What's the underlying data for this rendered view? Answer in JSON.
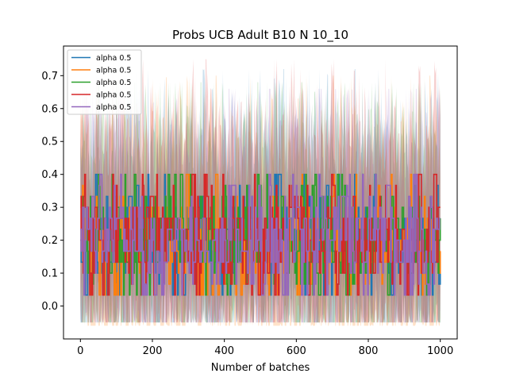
{
  "chart_data": {
    "type": "line",
    "title": "Probs UCB Adult B10 N 10_10",
    "xlabel": "Number of batches",
    "ylabel": "",
    "xlim": [
      -47,
      1047
    ],
    "ylim": [
      -0.1,
      0.79
    ],
    "xticks": [
      0,
      200,
      400,
      600,
      800,
      1000
    ],
    "xtick_labels": [
      "0",
      "200",
      "400",
      "600",
      "800",
      "1000"
    ],
    "yticks": [
      0.0,
      0.1,
      0.2,
      0.3,
      0.4,
      0.5,
      0.6,
      0.7
    ],
    "ytick_labels": [
      "0.0",
      "0.1",
      "0.2",
      "0.3",
      "0.4",
      "0.5",
      "0.6",
      "0.7"
    ],
    "grid": false,
    "legend_position": "upper-left",
    "x_range": [
      0,
      1000
    ],
    "line_value_levels": [
      0.0333,
      0.0667,
      0.1,
      0.1333,
      0.1667,
      0.2,
      0.2333,
      0.2667,
      0.3,
      0.3333,
      0.3667,
      0.4,
      0.4333
    ],
    "series": [
      {
        "name": "alpha 0.5",
        "color": "#1f77b4",
        "mean_value": 0.2,
        "band_range": [
          -0.05,
          0.72
        ]
      },
      {
        "name": "alpha 0.5",
        "color": "#ff7f0e",
        "mean_value": 0.2,
        "band_range": [
          -0.06,
          0.7
        ]
      },
      {
        "name": "alpha 0.5",
        "color": "#2ca02c",
        "mean_value": 0.2,
        "band_range": [
          -0.05,
          0.68
        ]
      },
      {
        "name": "alpha 0.5",
        "color": "#d62728",
        "mean_value": 0.2,
        "band_range": [
          -0.05,
          0.75
        ]
      },
      {
        "name": "alpha 0.5",
        "color": "#9467bd",
        "mean_value": 0.2,
        "band_range": [
          -0.05,
          0.66
        ]
      }
    ]
  }
}
